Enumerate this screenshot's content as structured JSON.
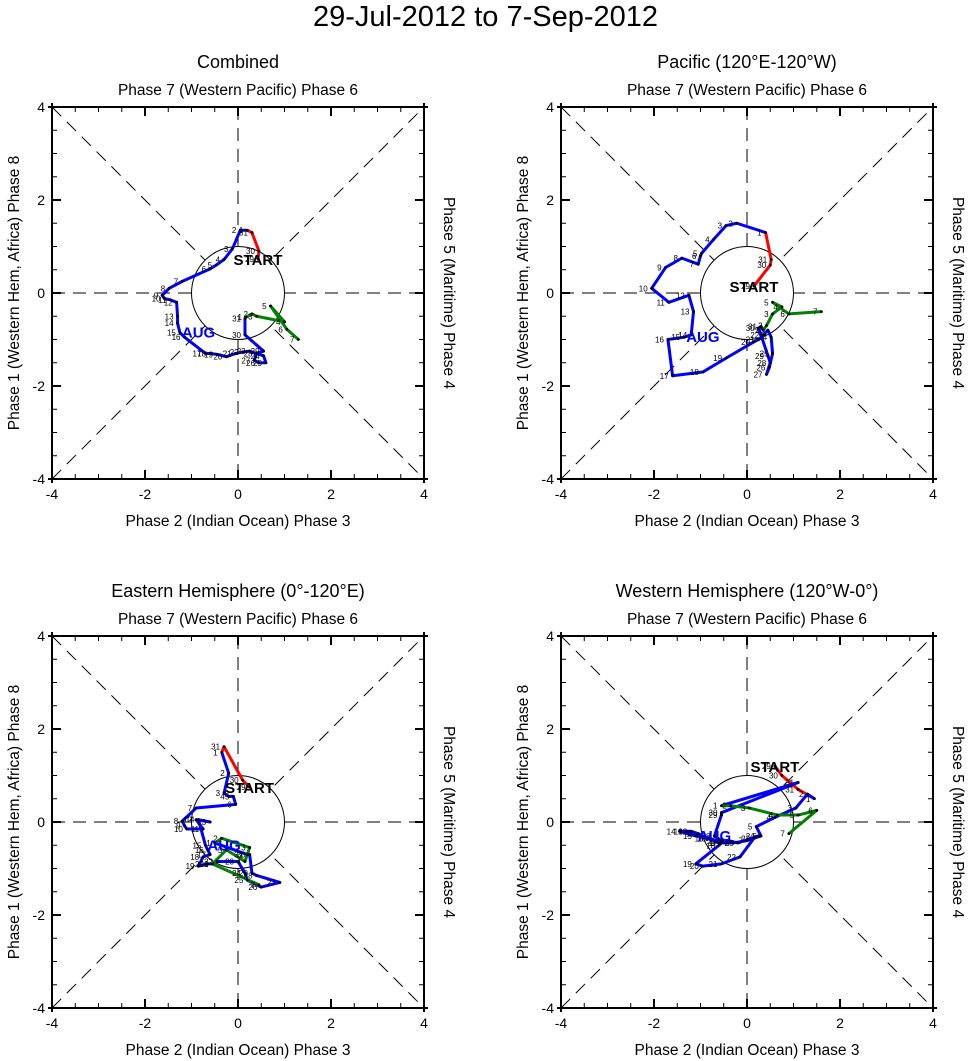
{
  "title": "29-Jul-2012 to 7-Sep-2012",
  "chart_data": [
    {
      "type": "line",
      "title": "Combined",
      "top_label": "Phase 7 (Western Pacific) Phase 6",
      "bottom_label": "Phase 2 (Indian Ocean) Phase 3",
      "left_label": "Phase 1 (Western Hem, Africa) Phase 8",
      "right_label": "Phase 5 (Maritime) Phase 4",
      "xlim": [
        -4,
        4
      ],
      "ylim": [
        -4,
        4
      ],
      "xticks": [
        "-4",
        "-2",
        "0",
        "2",
        "4"
      ],
      "yticks": [
        "-4",
        "-2",
        "0",
        "2",
        "4"
      ],
      "start_label": "START",
      "month_label": "AUG",
      "series": [
        {
          "name": "Jul",
          "color": "#ff0000",
          "days": [
            "29",
            "30",
            "31"
          ],
          "x": [
            0.43,
            0.45,
            0.3
          ],
          "y": [
            0.73,
            0.9,
            1.3
          ]
        },
        {
          "name": "Aug",
          "color": "#0000ff",
          "days": [
            "1",
            "2",
            "3",
            "4",
            "5",
            "6",
            "7",
            "8",
            "9",
            "10",
            "11",
            "12",
            "13",
            "14",
            "15",
            "16",
            "17",
            "18",
            "19",
            "20",
            "21",
            "22",
            "23",
            "24",
            "25",
            "26",
            "27",
            "28",
            "29",
            "30",
            "31"
          ],
          "x": [
            0.2,
            0.05,
            -0.12,
            -0.3,
            -0.47,
            -0.6,
            -1.2,
            -1.48,
            -1.63,
            -1.58,
            -1.45,
            -1.32,
            -1.3,
            -1.3,
            -1.25,
            -1.15,
            -0.7,
            -0.6,
            -0.45,
            -0.25,
            -0.05,
            0.1,
            0.25,
            0.55,
            0.6,
            0.45,
            0.35,
            0.4,
            0.55,
            0.15,
            0.15
          ],
          "y": [
            1.35,
            1.35,
            0.95,
            0.72,
            0.6,
            0.52,
            0.25,
            0.1,
            -0.05,
            -0.12,
            -0.15,
            -0.2,
            -0.5,
            -0.65,
            -0.85,
            -0.95,
            -1.3,
            -1.3,
            -1.32,
            -1.37,
            -1.3,
            -1.27,
            -1.25,
            -1.35,
            -1.5,
            -1.5,
            -1.45,
            -1.3,
            -1.25,
            -0.9,
            -0.55
          ]
        },
        {
          "name": "Sep",
          "color": "#008000",
          "days": [
            "1",
            "2",
            "3",
            "4",
            "5",
            "6",
            "7"
          ],
          "x": [
            0.17,
            0.3,
            0.4,
            1.0,
            0.7,
            1.05,
            1.3
          ],
          "y": [
            -0.52,
            -0.45,
            -0.5,
            -0.62,
            -0.28,
            -0.78,
            -1.0
          ]
        }
      ]
    },
    {
      "type": "line",
      "title": "Pacific (120°E-120°W)",
      "top_label": "Phase 7 (Western Pacific) Phase 6",
      "bottom_label": "Phase 2 (Indian Ocean) Phase 3",
      "left_label": "Phase 1 (Western Hem, Africa) Phase 8",
      "right_label": "Phase 5 (Maritime) Phase 4",
      "xlim": [
        -4,
        4
      ],
      "ylim": [
        -4,
        4
      ],
      "xticks": [
        "-4",
        "-2",
        "0",
        "2",
        "4"
      ],
      "yticks": [
        "-4",
        "-2",
        "0",
        "2",
        "4"
      ],
      "start_label": "START",
      "month_label": "AUG",
      "series": [
        {
          "name": "Jul",
          "color": "#ff0000",
          "days": [
            "29",
            "30",
            "31"
          ],
          "x": [
            0.15,
            0.5,
            0.52
          ],
          "y": [
            0.15,
            0.6,
            0.72
          ]
        },
        {
          "name": "Aug",
          "color": "#0000ff",
          "days": [
            "1",
            "2",
            "3",
            "4",
            "5",
            "6",
            "7",
            "8",
            "9",
            "10",
            "11",
            "12",
            "13",
            "14",
            "15",
            "16",
            "17",
            "18",
            "19",
            "20",
            "21",
            "22",
            "23",
            "24",
            "25",
            "26",
            "27",
            "28",
            "29",
            "30",
            "31"
          ],
          "x": [
            0.4,
            -0.22,
            -0.45,
            -0.72,
            -0.98,
            -1.0,
            -1.05,
            -1.4,
            -1.75,
            -2.05,
            -1.68,
            -1.25,
            -1.15,
            -1.2,
            -1.35,
            -1.7,
            -1.6,
            -0.95,
            -0.45,
            0.15,
            0.25,
            0.35,
            0.45,
            0.52,
            0.55,
            0.48,
            0.42,
            0.5,
            0.45,
            0.25,
            0.3
          ],
          "y": [
            1.3,
            1.5,
            1.45,
            1.15,
            0.85,
            0.8,
            0.62,
            0.75,
            0.55,
            0.1,
            -0.2,
            -0.05,
            -0.4,
            -0.9,
            -0.95,
            -1.0,
            -1.78,
            -1.7,
            -1.4,
            -1.05,
            -1.0,
            -0.9,
            -0.8,
            -0.95,
            -1.3,
            -1.6,
            -1.75,
            -1.5,
            -1.35,
            -0.75,
            -0.72
          ]
        },
        {
          "name": "Sep",
          "color": "#008000",
          "days": [
            "1",
            "2",
            "3",
            "4",
            "5",
            "6",
            "7"
          ],
          "x": [
            0.35,
            0.42,
            0.55,
            0.75,
            0.55,
            0.9,
            1.6
          ],
          "y": [
            -0.8,
            -0.7,
            -0.45,
            -0.3,
            -0.2,
            -0.45,
            -0.4
          ]
        }
      ]
    },
    {
      "type": "line",
      "title": "Eastern Hemisphere (0°-120°E)",
      "top_label": "Phase 7 (Western Pacific) Phase 6",
      "bottom_label": "Phase 2 (Indian Ocean) Phase 3",
      "left_label": "Phase 1 (Western Hem, Africa) Phase 8",
      "right_label": "Phase 5 (Maritime) Phase 4",
      "xlim": [
        -4,
        4
      ],
      "ylim": [
        -4,
        4
      ],
      "xticks": [
        "-4",
        "-2",
        "0",
        "2",
        "4"
      ],
      "yticks": [
        "-4",
        "-2",
        "0",
        "2",
        "4"
      ],
      "start_label": "START",
      "month_label": "AUG",
      "series": [
        {
          "name": "Jul",
          "color": "#ff0000",
          "days": [
            "29",
            "30",
            "31"
          ],
          "x": [
            0.25,
            0.1,
            -0.3
          ],
          "y": [
            0.75,
            0.9,
            1.62
          ]
        },
        {
          "name": "Aug",
          "color": "#0000ff",
          "days": [
            "1",
            "2",
            "3",
            "4",
            "5",
            "6",
            "7",
            "8",
            "9",
            "10",
            "11",
            "12",
            "13",
            "14",
            "15",
            "16",
            "17",
            "18",
            "19",
            "20",
            "21",
            "22",
            "23",
            "24",
            "25",
            "26",
            "27",
            "28",
            "29",
            "30",
            "31"
          ],
          "x": [
            -0.35,
            -0.2,
            -0.3,
            -0.2,
            -0.1,
            -0.05,
            -0.9,
            -1.2,
            -1.15,
            -1.1,
            -0.75,
            -0.9,
            -0.6,
            -0.85,
            -0.7,
            -0.65,
            -0.6,
            -0.75,
            -0.85,
            -0.65,
            -0.55,
            -0.45,
            0.0,
            0.15,
            0.2,
            0.5,
            0.9,
            0.4,
            0.3,
            0.25,
            0.2
          ],
          "y": [
            1.5,
            1.05,
            0.62,
            0.55,
            0.55,
            0.38,
            0.3,
            0.02,
            -0.08,
            -0.15,
            -0.15,
            0.05,
            0.0,
            0.05,
            -0.5,
            -0.6,
            -0.7,
            -0.75,
            -0.95,
            -0.9,
            -0.9,
            -0.85,
            -0.85,
            -1.1,
            -1.25,
            -1.4,
            -1.3,
            -1.15,
            -1.1,
            -0.7,
            -0.7
          ]
        },
        {
          "name": "Sep",
          "color": "#008000",
          "days": [
            "1",
            "2",
            "3",
            "4",
            "5",
            "6",
            "7"
          ],
          "x": [
            -0.5,
            -0.35,
            0.25,
            0.15,
            -0.25,
            -0.55,
            0.45
          ],
          "y": [
            -0.45,
            -0.35,
            -0.55,
            -0.85,
            -0.6,
            -0.9,
            -1.35
          ]
        }
      ]
    },
    {
      "type": "line",
      "title": "Western Hemisphere (120°W-0°)",
      "top_label": "Phase 7 (Western Pacific) Phase 6",
      "bottom_label": "Phase 2 (Indian Ocean) Phase 3",
      "left_label": "Phase 1 (Western Hem, Africa) Phase 8",
      "right_label": "Phase 5 (Maritime) Phase 4",
      "xlim": [
        -4,
        4
      ],
      "ylim": [
        -4,
        4
      ],
      "xticks": [
        "-4",
        "-2",
        "0",
        "2",
        "4"
      ],
      "yticks": [
        "-4",
        "-2",
        "0",
        "2",
        "4"
      ],
      "start_label": "START",
      "month_label": "AUG",
      "series": [
        {
          "name": "Jul",
          "color": "#ff0000",
          "days": [
            "29",
            "30",
            "31"
          ],
          "x": [
            0.6,
            0.75,
            1.1
          ],
          "y": [
            1.2,
            1.0,
            0.7
          ]
        },
        {
          "name": "Aug",
          "color": "#0000ff",
          "days": [
            "1",
            "2",
            "3",
            "4",
            "5",
            "6",
            "7",
            "8",
            "9",
            "10",
            "11",
            "12",
            "13",
            "14",
            "15",
            "16",
            "17",
            "18",
            "19",
            "20",
            "21",
            "22",
            "23",
            "24",
            "25",
            "26",
            "27",
            "28",
            "29",
            "30",
            "31"
          ],
          "x": [
            1.45,
            1.3,
            1.05,
            0.6,
            0.2,
            0.3,
            -0.0,
            -0.3,
            -0.6,
            -0.85,
            -1.05,
            -1.2,
            -1.3,
            -1.45,
            -1.1,
            -0.8,
            -0.55,
            -0.6,
            -1.1,
            -0.95,
            -0.55,
            -0.15,
            0.15,
            0.25,
            -0.2,
            -0.4,
            -0.55,
            -0.7,
            -0.55,
            -0.55,
            1.1
          ],
          "y": [
            0.5,
            0.6,
            0.3,
            0.1,
            -0.1,
            -0.3,
            -0.4,
            -0.45,
            -0.45,
            -0.35,
            -0.25,
            -0.2,
            -0.2,
            -0.2,
            -0.3,
            -0.35,
            -0.45,
            -0.5,
            -0.9,
            -0.95,
            -0.9,
            -0.75,
            -0.35,
            -0.3,
            -0.45,
            -0.4,
            -0.4,
            -0.3,
            0.15,
            0.2,
            0.85
          ]
        },
        {
          "name": "Sep",
          "color": "#008000",
          "days": [
            "1",
            "2",
            "3",
            "4",
            "5",
            "6",
            "7"
          ],
          "x": [
            -0.55,
            -0.35,
            0.05,
            0.65,
            1.1,
            1.5,
            0.9
          ],
          "y": [
            0.35,
            0.35,
            0.3,
            0.15,
            0.15,
            0.25,
            -0.25
          ]
        }
      ]
    }
  ]
}
